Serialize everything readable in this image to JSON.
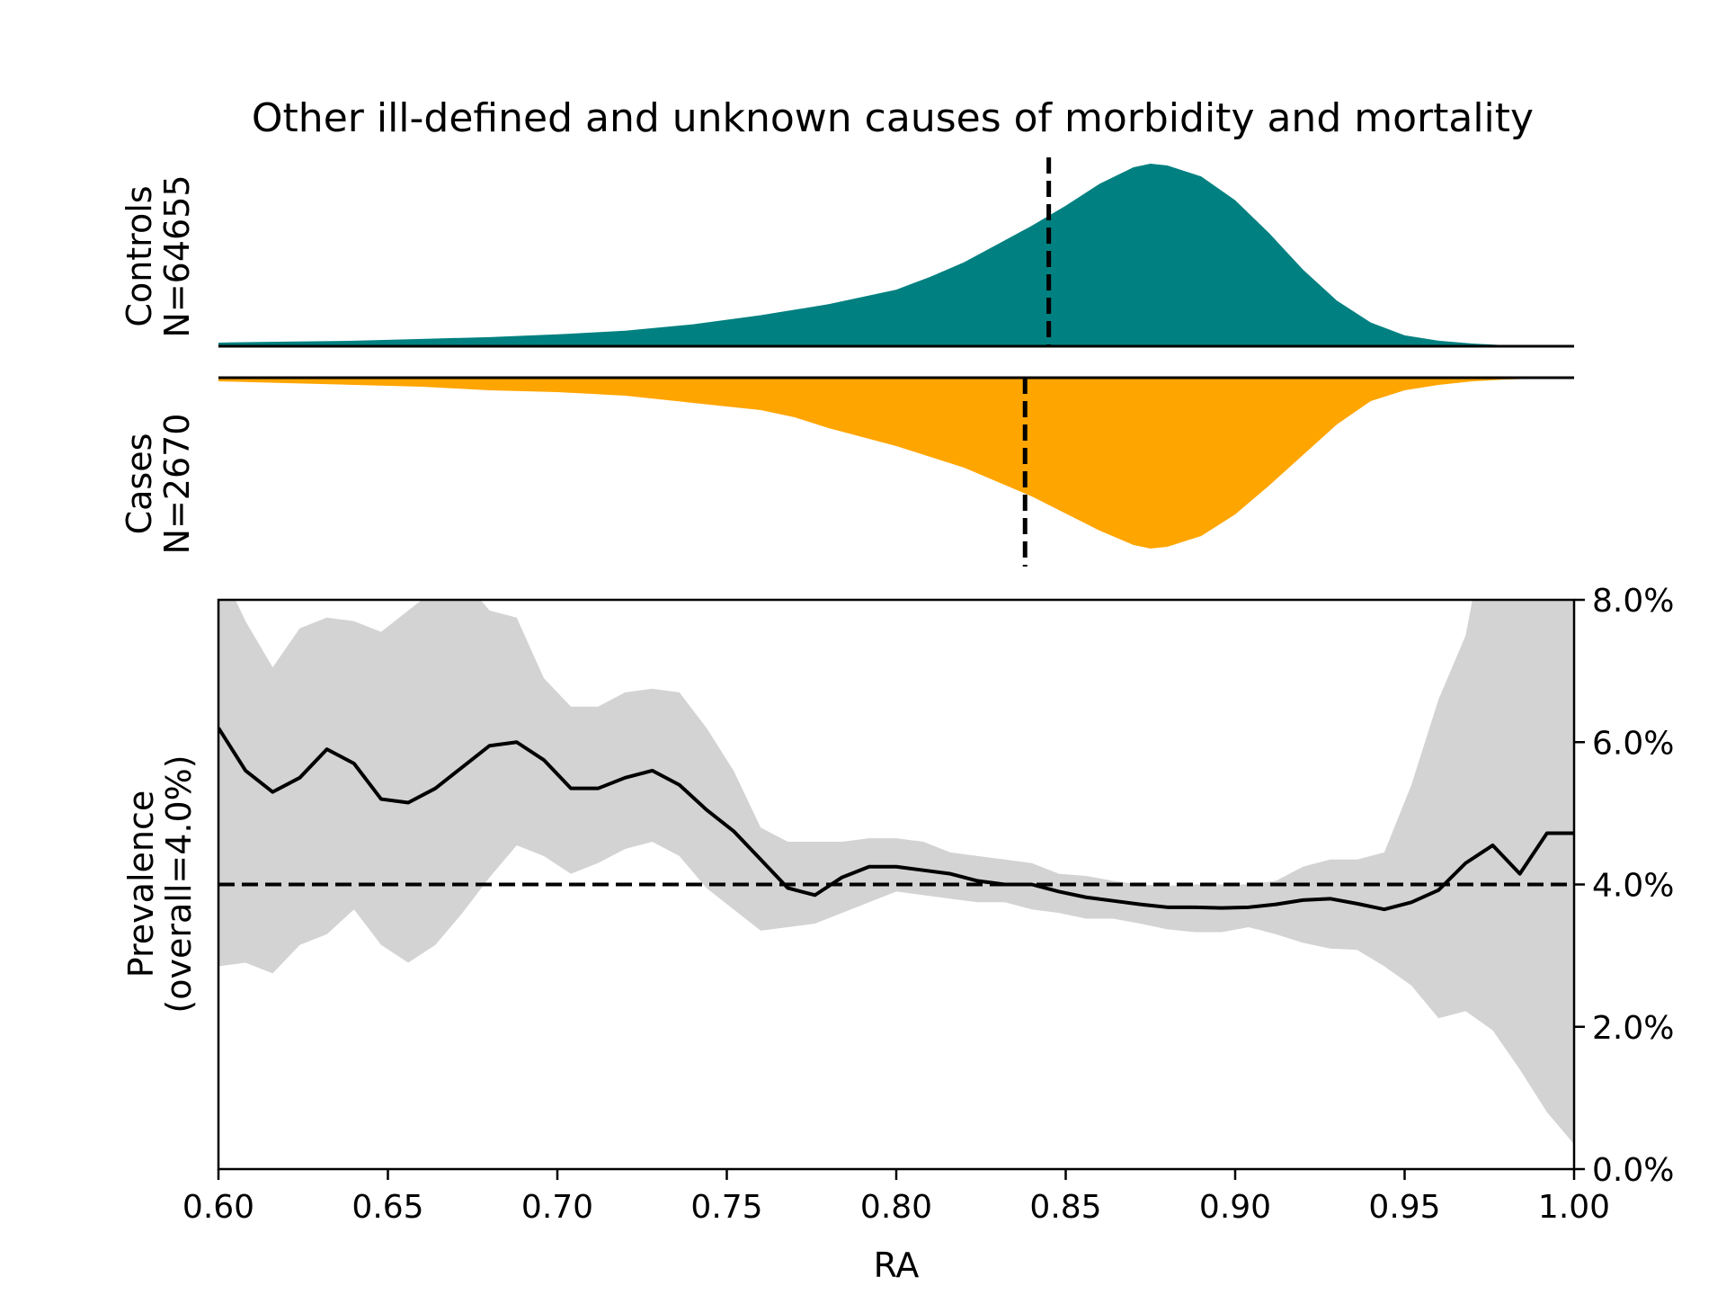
{
  "chart_data": {
    "type": "area",
    "title": "Other ill-defined and unknown causes of morbidity and mortality",
    "xlabel": "RA",
    "xlim": [
      0.6,
      1.0
    ],
    "x_ticks": [
      "0.60",
      "0.65",
      "0.70",
      "0.75",
      "0.80",
      "0.85",
      "0.90",
      "0.95",
      "1.00"
    ],
    "panels": {
      "controls": {
        "label_line1": "Controls",
        "label_line2": "N=64655",
        "color": "#008080",
        "median_x": 0.845,
        "density_x": [
          0.6,
          0.62,
          0.64,
          0.66,
          0.68,
          0.7,
          0.72,
          0.74,
          0.76,
          0.78,
          0.8,
          0.81,
          0.82,
          0.83,
          0.84,
          0.85,
          0.86,
          0.87,
          0.875,
          0.88,
          0.89,
          0.9,
          0.91,
          0.92,
          0.93,
          0.94,
          0.95,
          0.96,
          0.97,
          0.98,
          1.0
        ],
        "density_y": [
          0.02,
          0.025,
          0.03,
          0.04,
          0.05,
          0.065,
          0.085,
          0.12,
          0.17,
          0.23,
          0.31,
          0.38,
          0.46,
          0.56,
          0.66,
          0.77,
          0.89,
          0.98,
          1.0,
          0.99,
          0.93,
          0.8,
          0.62,
          0.42,
          0.25,
          0.13,
          0.06,
          0.03,
          0.015,
          0.005,
          0.0
        ]
      },
      "cases": {
        "label_line1": "Cases",
        "label_line2": "N=2670",
        "color": "#ffa500",
        "median_x": 0.838,
        "density_x": [
          0.6,
          0.62,
          0.64,
          0.66,
          0.68,
          0.7,
          0.72,
          0.74,
          0.76,
          0.77,
          0.78,
          0.8,
          0.82,
          0.84,
          0.86,
          0.87,
          0.875,
          0.88,
          0.89,
          0.9,
          0.91,
          0.92,
          0.93,
          0.94,
          0.95,
          0.96,
          0.97,
          0.98,
          1.0
        ],
        "density_y": [
          0.02,
          0.03,
          0.04,
          0.05,
          0.07,
          0.08,
          0.1,
          0.14,
          0.18,
          0.22,
          0.28,
          0.38,
          0.5,
          0.66,
          0.85,
          0.93,
          0.95,
          0.94,
          0.88,
          0.76,
          0.6,
          0.43,
          0.26,
          0.13,
          0.07,
          0.04,
          0.02,
          0.01,
          0.0
        ]
      }
    },
    "prevalence": {
      "ylabel_line1": "Prevalence",
      "ylabel_line2": "(overall=4.0%)",
      "ylim": [
        0,
        8
      ],
      "y_ticks": [
        "0.0%",
        "2.0%",
        "4.0%",
        "6.0%",
        "8.0%"
      ],
      "overall": 4.0,
      "line_color": "#000000",
      "band_color": "#d3d3d3",
      "x": [
        0.6,
        0.608,
        0.616,
        0.624,
        0.632,
        0.64,
        0.648,
        0.656,
        0.664,
        0.672,
        0.68,
        0.688,
        0.696,
        0.704,
        0.712,
        0.72,
        0.728,
        0.736,
        0.744,
        0.752,
        0.76,
        0.768,
        0.776,
        0.784,
        0.792,
        0.8,
        0.808,
        0.816,
        0.824,
        0.832,
        0.84,
        0.848,
        0.856,
        0.864,
        0.872,
        0.88,
        0.888,
        0.896,
        0.904,
        0.912,
        0.92,
        0.928,
        0.936,
        0.944,
        0.952,
        0.96,
        0.968,
        0.976,
        0.984,
        0.992,
        1.0
      ],
      "y": [
        6.2,
        5.6,
        5.3,
        5.5,
        5.9,
        5.7,
        5.2,
        5.15,
        5.35,
        5.65,
        5.95,
        6.0,
        5.75,
        5.35,
        5.35,
        5.5,
        5.6,
        5.4,
        5.05,
        4.75,
        4.35,
        3.95,
        3.85,
        4.1,
        4.25,
        4.25,
        4.2,
        4.15,
        4.05,
        4.0,
        4.0,
        3.9,
        3.82,
        3.77,
        3.72,
        3.68,
        3.68,
        3.67,
        3.68,
        3.72,
        3.78,
        3.8,
        3.73,
        3.65,
        3.75,
        3.92,
        4.3,
        4.55,
        4.15,
        4.72,
        4.72
      ],
      "upper": [
        8.5,
        7.7,
        7.05,
        7.6,
        7.75,
        7.7,
        7.55,
        7.85,
        8.15,
        8.3,
        7.85,
        7.75,
        6.9,
        6.5,
        6.5,
        6.7,
        6.75,
        6.7,
        6.2,
        5.6,
        4.8,
        4.6,
        4.6,
        4.6,
        4.65,
        4.65,
        4.6,
        4.45,
        4.4,
        4.35,
        4.3,
        4.15,
        4.12,
        4.05,
        4.0,
        3.98,
        4.0,
        4.0,
        4.0,
        4.05,
        4.25,
        4.35,
        4.35,
        4.45,
        5.4,
        6.6,
        7.5,
        9.5,
        10,
        10,
        10
      ],
      "lower": [
        2.85,
        2.9,
        2.75,
        3.15,
        3.3,
        3.65,
        3.15,
        2.9,
        3.15,
        3.6,
        4.1,
        4.55,
        4.4,
        4.15,
        4.3,
        4.5,
        4.6,
        4.4,
        3.95,
        3.65,
        3.35,
        3.4,
        3.45,
        3.6,
        3.75,
        3.9,
        3.85,
        3.8,
        3.75,
        3.75,
        3.65,
        3.6,
        3.52,
        3.52,
        3.45,
        3.37,
        3.33,
        3.33,
        3.4,
        3.3,
        3.18,
        3.1,
        3.08,
        2.85,
        2.58,
        2.12,
        2.22,
        1.95,
        1.4,
        0.8,
        0.35
      ]
    }
  }
}
